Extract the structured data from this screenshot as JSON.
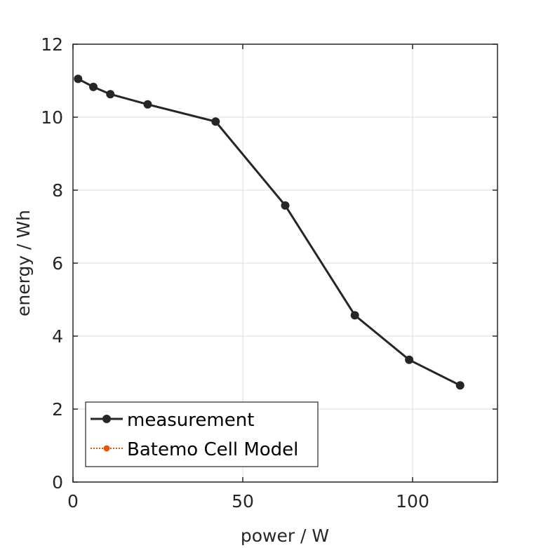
{
  "chart_data": {
    "type": "line",
    "title": "",
    "xlabel": "power / W",
    "ylabel": "energy / Wh",
    "xlim": [
      0,
      125
    ],
    "ylim": [
      0,
      12
    ],
    "xticks": [
      0,
      50,
      100
    ],
    "yticks": [
      0,
      2,
      4,
      6,
      8,
      10,
      12
    ],
    "grid": true,
    "legend_position": "bottom-left",
    "series": [
      {
        "name": "measurement",
        "color": "#262626",
        "line_style": "solid",
        "marker": "circle",
        "x": [
          1.5,
          6,
          11,
          22,
          42,
          62.5,
          83,
          99,
          114
        ],
        "y": [
          11.05,
          10.83,
          10.63,
          10.35,
          9.88,
          7.58,
          4.57,
          3.35,
          2.65
        ]
      },
      {
        "name": "Batemo Cell Model",
        "color": "#e3560f",
        "line_style": "dotted",
        "marker": "circle",
        "x": [],
        "y": []
      }
    ]
  }
}
